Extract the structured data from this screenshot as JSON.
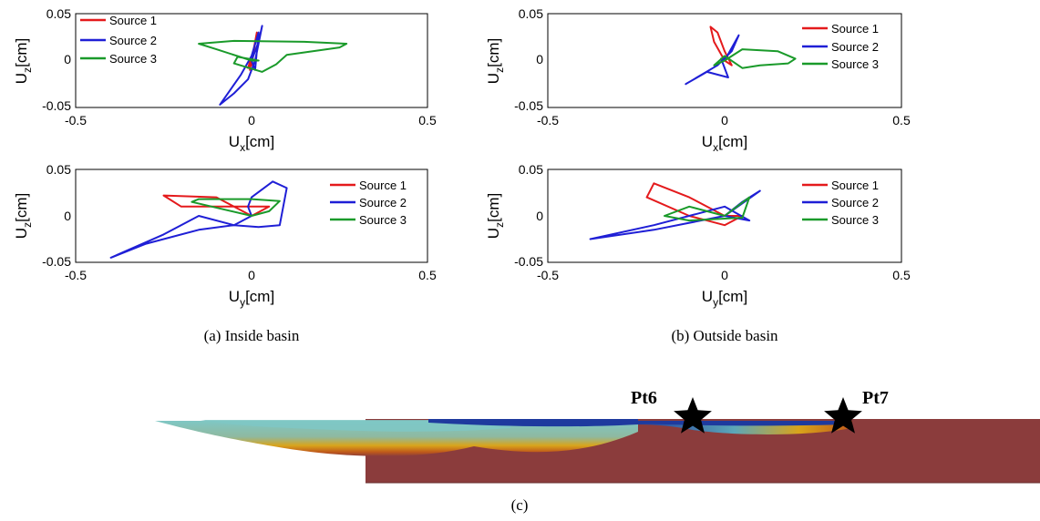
{
  "chart_data": [
    {
      "id": "a-top",
      "type": "line",
      "xlabel": "U",
      "xlabel_sub": "x",
      "xlabel_unit": "[cm]",
      "ylabel": "U",
      "ylabel_sub": "z",
      "ylabel_unit": "[cm]",
      "xlim": [
        -0.5,
        0.5
      ],
      "ylim": [
        -0.05,
        0.05
      ],
      "xticks": [
        "-0.5",
        "0",
        "0.5"
      ],
      "yticks": [
        "-0.05",
        "0",
        "0.05"
      ],
      "legend_position": "top-left",
      "series": [
        {
          "name": "Source 1",
          "color": "#e41a1c",
          "x": [
            0.0,
            0.01,
            -0.005,
            0.015,
            0.0,
            0.005,
            -0.01,
            0.0
          ],
          "y": [
            0.0,
            0.02,
            -0.01,
            0.03,
            -0.005,
            0.01,
            -0.008,
            0.0
          ]
        },
        {
          "name": "Source 2",
          "color": "#1f1fd6",
          "x": [
            0.0,
            0.02,
            0.03,
            0.01,
            -0.01,
            -0.05,
            -0.09,
            -0.03,
            0.0,
            0.02,
            0.01,
            0.0
          ],
          "y": [
            0.0,
            0.02,
            0.037,
            0.0,
            -0.02,
            -0.035,
            -0.047,
            -0.015,
            0.005,
            0.03,
            -0.01,
            0.0
          ]
        },
        {
          "name": "Source 3",
          "color": "#1a9a2a",
          "x": [
            0.0,
            -0.1,
            -0.15,
            -0.05,
            0.15,
            0.27,
            0.25,
            0.1,
            0.07,
            0.03,
            -0.05,
            -0.04,
            0.02,
            0.0
          ],
          "y": [
            0.0,
            0.012,
            0.018,
            0.021,
            0.02,
            0.018,
            0.014,
            0.006,
            -0.004,
            -0.012,
            -0.003,
            0.004,
            0.0,
            0.0
          ]
        }
      ]
    },
    {
      "id": "b-top",
      "type": "line",
      "xlabel": "U",
      "xlabel_sub": "x",
      "xlabel_unit": "[cm]",
      "ylabel": "U",
      "ylabel_sub": "z",
      "ylabel_unit": "[cm]",
      "xlim": [
        -0.5,
        0.5
      ],
      "ylim": [
        -0.05,
        0.05
      ],
      "xticks": [
        "-0.5",
        "0",
        "0.5"
      ],
      "yticks": [
        "-0.05",
        "0",
        "0.05"
      ],
      "legend_position": "top-right",
      "series": [
        {
          "name": "Source 1",
          "color": "#e41a1c",
          "x": [
            0.0,
            -0.03,
            -0.04,
            -0.02,
            0.0,
            0.02,
            0.0
          ],
          "y": [
            0.0,
            0.02,
            0.036,
            0.03,
            0.01,
            -0.005,
            0.0
          ]
        },
        {
          "name": "Source 2",
          "color": "#1f1fd6",
          "x": [
            0.0,
            0.04,
            0.02,
            -0.02,
            -0.11,
            -0.05,
            0.01,
            -0.01,
            0.0
          ],
          "y": [
            0.0,
            0.027,
            0.01,
            -0.005,
            -0.025,
            -0.012,
            -0.018,
            0.002,
            0.0
          ]
        },
        {
          "name": "Source 3",
          "color": "#1a9a2a",
          "x": [
            0.0,
            0.05,
            0.15,
            0.2,
            0.18,
            0.1,
            0.05,
            0.0,
            -0.03,
            0.0
          ],
          "y": [
            0.0,
            0.012,
            0.01,
            0.002,
            -0.003,
            -0.005,
            -0.008,
            0.005,
            -0.005,
            0.0
          ]
        }
      ]
    },
    {
      "id": "a-bottom",
      "type": "line",
      "xlabel": "U",
      "xlabel_sub": "y",
      "xlabel_unit": "[cm]",
      "ylabel": "U",
      "ylabel_sub": "z",
      "ylabel_unit": "[cm]",
      "xlim": [
        -0.5,
        0.5
      ],
      "ylim": [
        -0.05,
        0.05
      ],
      "xticks": [
        "-0.5",
        "0",
        "0.5"
      ],
      "yticks": [
        "-0.05",
        "0",
        "0.05"
      ],
      "legend_position": "top-right",
      "series": [
        {
          "name": "Source 1",
          "color": "#e41a1c",
          "x": [
            0.0,
            -0.1,
            -0.25,
            -0.2,
            -0.05,
            0.05,
            0.01,
            0.0
          ],
          "y": [
            0.0,
            0.02,
            0.022,
            0.01,
            0.01,
            0.01,
            0.002,
            0.0
          ]
        },
        {
          "name": "Source 2",
          "color": "#1f1fd6",
          "x": [
            0.0,
            -0.05,
            -0.15,
            -0.25,
            -0.4,
            -0.3,
            -0.15,
            -0.05,
            0.02,
            0.08,
            0.1,
            0.06,
            0.0,
            -0.01,
            0.0
          ],
          "y": [
            0.0,
            -0.01,
            0.0,
            -0.02,
            -0.045,
            -0.03,
            -0.015,
            -0.01,
            -0.012,
            -0.01,
            0.03,
            0.037,
            0.02,
            0.01,
            0.0
          ]
        },
        {
          "name": "Source 3",
          "color": "#1a9a2a",
          "x": [
            0.0,
            -0.17,
            -0.15,
            0.0,
            0.08,
            0.05,
            0.0
          ],
          "y": [
            0.0,
            0.015,
            0.018,
            0.018,
            0.016,
            0.005,
            0.0
          ]
        }
      ]
    },
    {
      "id": "b-bottom",
      "type": "line",
      "xlabel": "U",
      "xlabel_sub": "y",
      "xlabel_unit": "[cm]",
      "ylabel": "U",
      "ylabel_sub": "z",
      "ylabel_unit": "[cm]",
      "xlim": [
        -0.5,
        0.5
      ],
      "ylim": [
        -0.05,
        0.05
      ],
      "xticks": [
        "-0.5",
        "0",
        "0.5"
      ],
      "yticks": [
        "-0.05",
        "0",
        "0.05"
      ],
      "legend_position": "top-right",
      "series": [
        {
          "name": "Source 1",
          "color": "#e41a1c",
          "x": [
            0.0,
            -0.1,
            -0.2,
            -0.22,
            -0.1,
            0.0,
            0.05,
            0.0
          ],
          "y": [
            0.0,
            0.02,
            0.035,
            0.02,
            0.0,
            -0.01,
            0.0,
            0.0
          ]
        },
        {
          "name": "Source 2",
          "color": "#1f1fd6",
          "x": [
            0.0,
            0.05,
            0.1,
            0.0,
            -0.2,
            -0.38,
            -0.2,
            0.0,
            0.07,
            0.0
          ],
          "y": [
            0.0,
            0.015,
            0.027,
            0.0,
            -0.015,
            -0.025,
            -0.01,
            0.01,
            -0.005,
            0.0
          ]
        },
        {
          "name": "Source 3",
          "color": "#1a9a2a",
          "x": [
            0.0,
            -0.1,
            -0.17,
            -0.1,
            0.05,
            0.07,
            0.0
          ],
          "y": [
            0.0,
            0.01,
            0.0,
            -0.005,
            -0.002,
            0.02,
            0.0
          ]
        }
      ]
    }
  ],
  "captions": {
    "a": "(a) Inside basin",
    "b": "(b) Outside basin",
    "c": "(c)"
  },
  "points": [
    {
      "label": "Pt6"
    },
    {
      "label": "Pt7"
    }
  ],
  "basin_colors": {
    "rock": "#8b3c3c",
    "deep": "#1e3a9e",
    "mid": "#7fc7c4",
    "edge": "#d9a41b",
    "orange": "#c05a1a"
  }
}
